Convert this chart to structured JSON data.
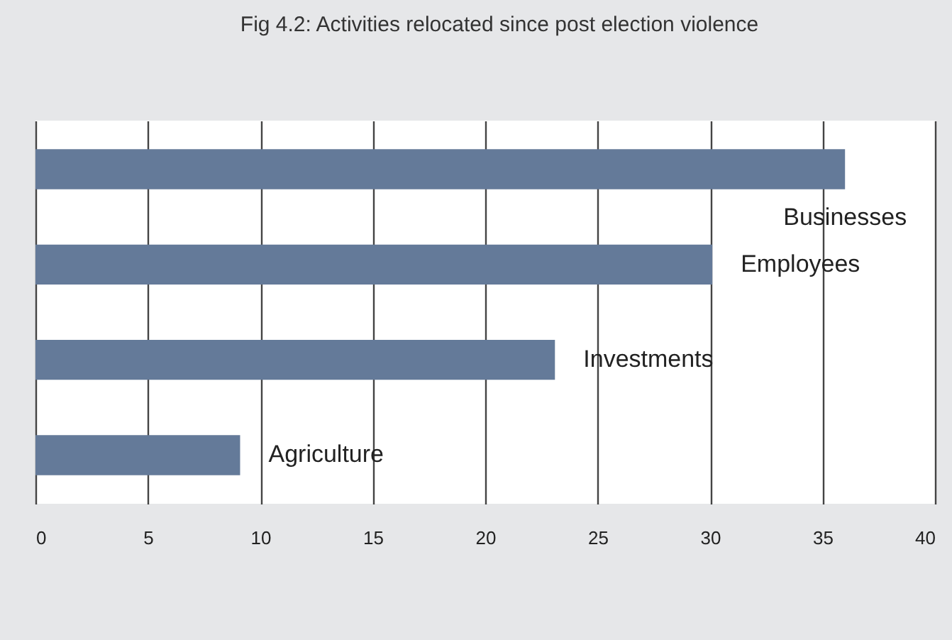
{
  "chart_data": {
    "type": "bar",
    "orientation": "horizontal",
    "title": "Fig 4.2: Activities relocated since post election violence",
    "categories": [
      "Businesses",
      "Employees",
      "Investments",
      "Agriculture"
    ],
    "values": [
      36.0,
      30.1,
      23.1,
      9.1
    ],
    "color": "#647a99",
    "xlim": [
      0,
      40
    ],
    "xticks": [
      0,
      5,
      10,
      15,
      20,
      25,
      30,
      35,
      40
    ],
    "grid": "x"
  }
}
